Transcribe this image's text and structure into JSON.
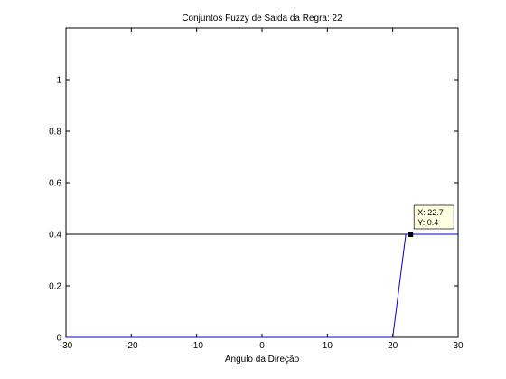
{
  "chart_data": {
    "type": "line",
    "title": "Conjuntos Fuzzy de Saida da Regra: 22",
    "xlabel": "Angulo da Direção",
    "ylabel": "",
    "xlim": [
      -30,
      30
    ],
    "ylim": [
      0,
      1.2
    ],
    "x_ticks": [
      -30,
      -20,
      -10,
      0,
      10,
      20,
      30
    ],
    "y_ticks": [
      0,
      0.2,
      0.4,
      0.6,
      0.8,
      1
    ],
    "grid": false,
    "series": [
      {
        "color": "#0000cc",
        "x": [
          -30,
          20,
          22,
          22.7,
          30
        ],
        "y": [
          0,
          0,
          0.4,
          0.4,
          0.4
        ]
      }
    ],
    "reference_line": {
      "y": 0.4,
      "color": "#000000"
    },
    "data_tip": {
      "x": 22.7,
      "y": 0.4,
      "x_text": "X: 22.7",
      "y_text": "Y: 0.4"
    }
  }
}
